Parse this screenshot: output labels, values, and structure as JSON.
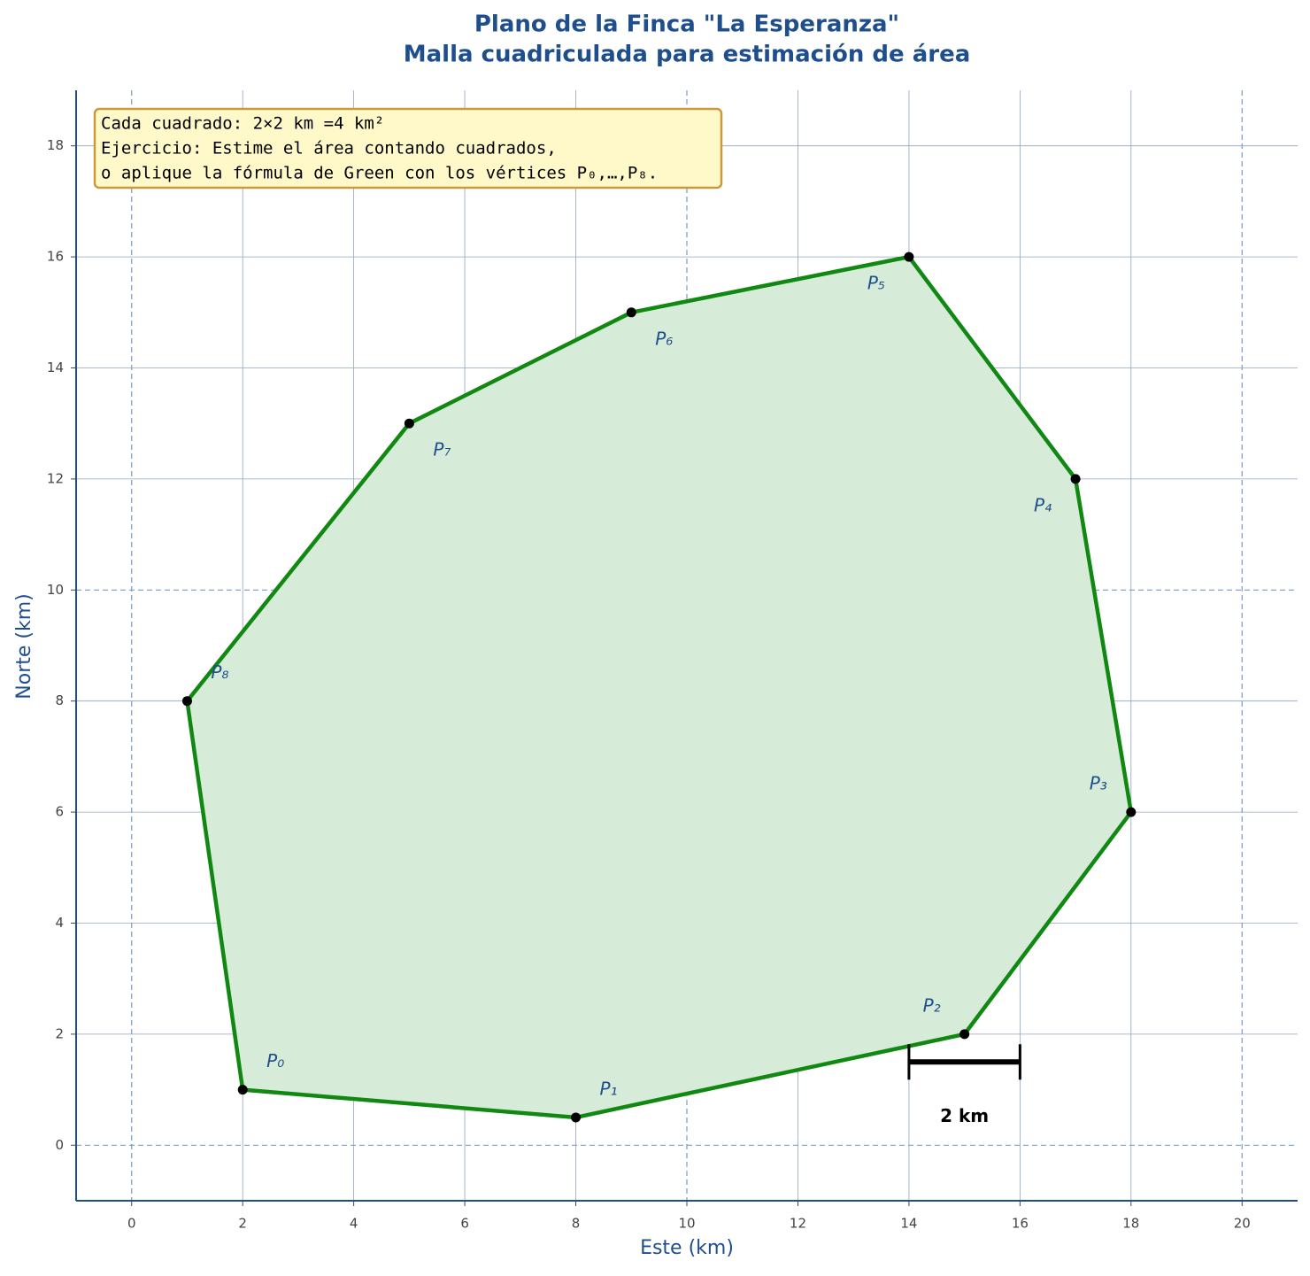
{
  "chart_data": {
    "type": "polygon",
    "title": [
      "Plano de la Finca \"La Esperanza\"",
      "Malla cuadriculada para estimación de área"
    ],
    "x_label": "Este  (km)",
    "y_label": "Norte  (km)",
    "x": [
      2,
      8,
      15,
      18,
      17,
      14,
      9,
      5,
      1
    ],
    "y": [
      1,
      0.5,
      2,
      6,
      12,
      16,
      15,
      13,
      8
    ],
    "point_labels": [
      "P₀",
      "P₁",
      "P₂",
      "P₃",
      "P₄",
      "P₅",
      "P₆",
      "P₇",
      "P₈"
    ],
    "line_color": "#118811",
    "fill_color": "#d6ecd8",
    "point_color": "#000000",
    "xlim": [
      -1,
      21
    ],
    "ylim": [
      -1,
      19
    ],
    "xticks": [
      0,
      2,
      4,
      6,
      8,
      10,
      12,
      14,
      16,
      18,
      20
    ],
    "yticks": [
      0,
      2,
      4,
      6,
      8,
      10,
      12,
      14,
      16,
      18
    ],
    "grid": true,
    "annotation": [
      "Cada cuadrado: 2×2 km =4 km²",
      "Ejercicio: Estime el área contando cuadrados,",
      "o aplique la fórmula de Green con los vértices P₀,…,P₈."
    ],
    "scale_bar": {
      "x": [
        14,
        16
      ],
      "y": 1.5,
      "label": "2 km"
    }
  }
}
